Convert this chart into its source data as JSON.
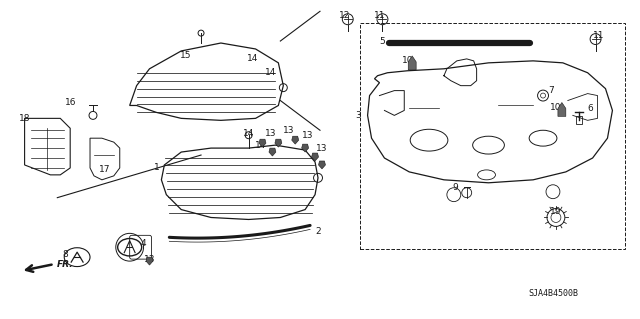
{
  "bg_color": "#ffffff",
  "line_color": "#1a1a1a",
  "diagram_code": "SJA4B4500B",
  "figsize": [
    6.4,
    3.19
  ],
  "dpi": 100
}
